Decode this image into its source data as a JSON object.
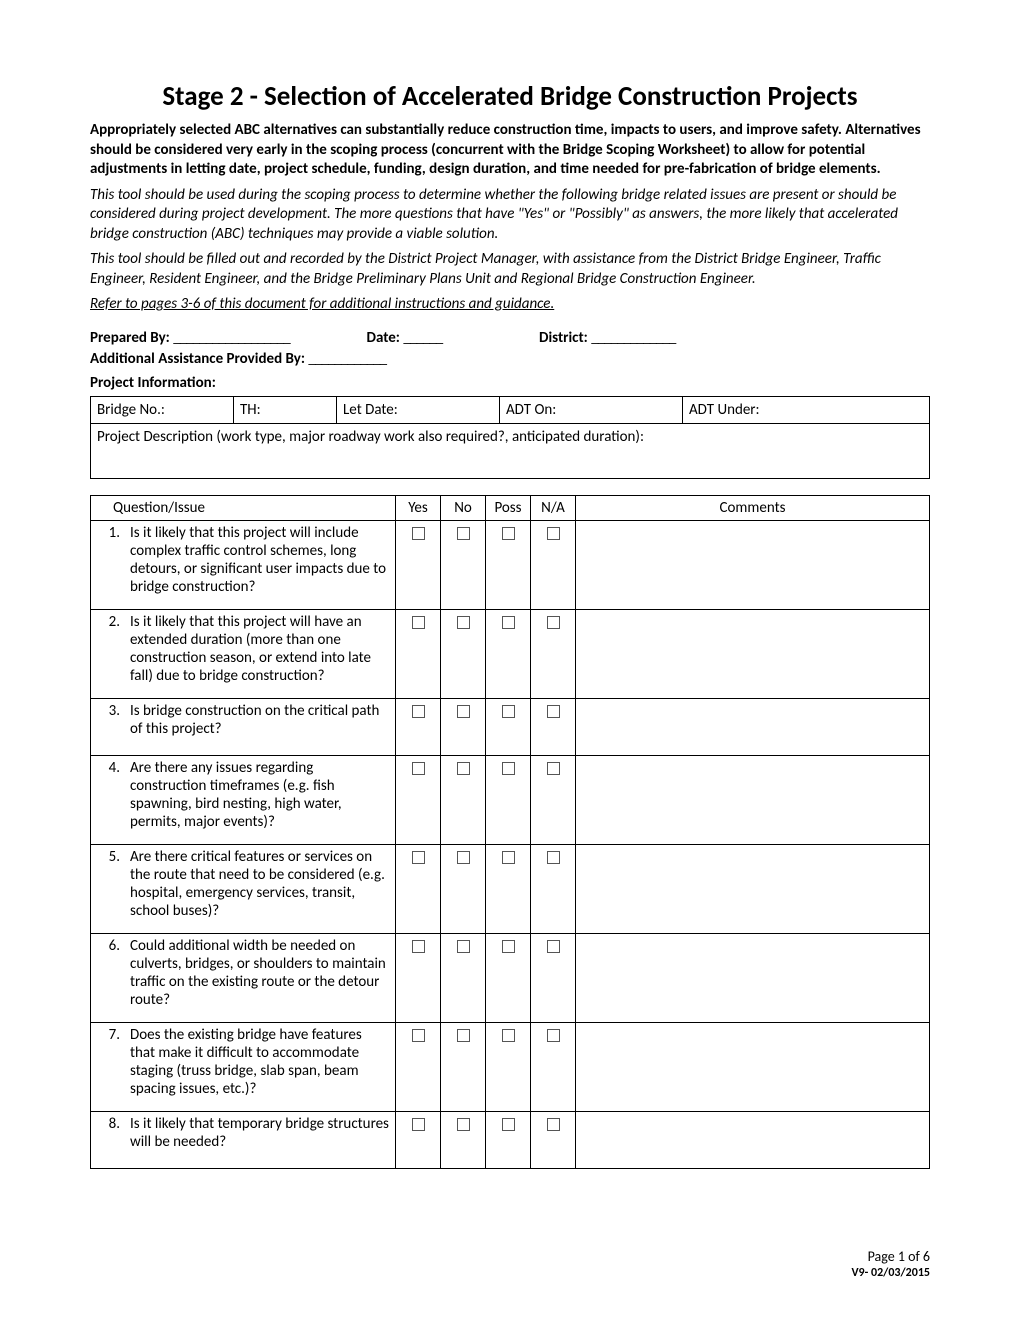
{
  "title": "Stage 2 - Selection of Accelerated Bridge Construction Projects",
  "intro_bold": "Appropriately selected ABC alternatives can substantially reduce construction time, impacts to users, and improve safety. Alternatives should be considered very early in the scoping process (concurrent with the Bridge Scoping Worksheet) to allow for potential adjustments in letting date, project schedule, funding, design duration, and time needed for pre-fabrication of bridge elements.",
  "intro_italic1": "This tool should be used during the scoping process to determine whether the following bridge related issues are present or should be considered during project development. The more questions that have \"Yes\" or \"Possibly\" as answers, the more likely that accelerated bridge construction (ABC) techniques may provide a viable solution.",
  "intro_italic2": "This tool should be filled out and recorded by the District Project Manager, with assistance from the District Bridge Engineer, Traffic Engineer, Resident Engineer, and the Bridge Preliminary Plans Unit and Regional Bridge Construction Engineer.",
  "intro_underline": "Refer to pages 3-6 of this document for additional instructions and guidance.",
  "meta": {
    "prepared_by": "Prepared By:",
    "date": "Date:",
    "district": "District:",
    "assistance": "Additional Assistance Provided By:",
    "proj_info": "Project Information:",
    "blank_long": "__________________",
    "blank_med": "_____________",
    "blank_short": "______",
    "blank_assist": "____________"
  },
  "proj_table": {
    "bridge_no": "Bridge No.:",
    "th": "TH:",
    "let_date": "Let Date:",
    "adt_on": "ADT On:",
    "adt_under": "ADT Under:",
    "description": "Project Description (work type, major roadway work also required?, anticipated duration):"
  },
  "q_headers": {
    "question": "Question/Issue",
    "yes": "Yes",
    "no": "No",
    "poss": "Poss",
    "na": "N/A",
    "comments": "Comments"
  },
  "questions": [
    {
      "num": "1.",
      "text": "Is it likely that this project will include complex traffic control schemes, long detours, or significant user impacts due to bridge construction?"
    },
    {
      "num": "2.",
      "text": "Is it likely that this project will have an extended duration (more than one construction season, or extend into late fall) due to bridge construction?"
    },
    {
      "num": "3.",
      "text": "Is bridge construction on the critical path of this project?"
    },
    {
      "num": "4.",
      "text": "Are there any issues regarding construction timeframes (e.g. fish spawning, bird nesting, high water, permits, major events)?"
    },
    {
      "num": "5.",
      "text": "Are there critical features or services on the route that need to be considered (e.g. hospital, emergency services, transit, school buses)?"
    },
    {
      "num": "6.",
      "text": "Could additional width be needed on culverts, bridges, or shoulders to maintain traffic on the existing route or the detour route?"
    },
    {
      "num": "7.",
      "text": "Does the existing bridge have features that make it difficult to accommodate staging (truss bridge, slab span, beam spacing issues, etc.)?"
    },
    {
      "num": "8.",
      "text": "Is it likely that temporary bridge structures will be needed?"
    }
  ],
  "footer": {
    "page": "Page 1 of 6",
    "version": "V9- 02/03/2015"
  }
}
